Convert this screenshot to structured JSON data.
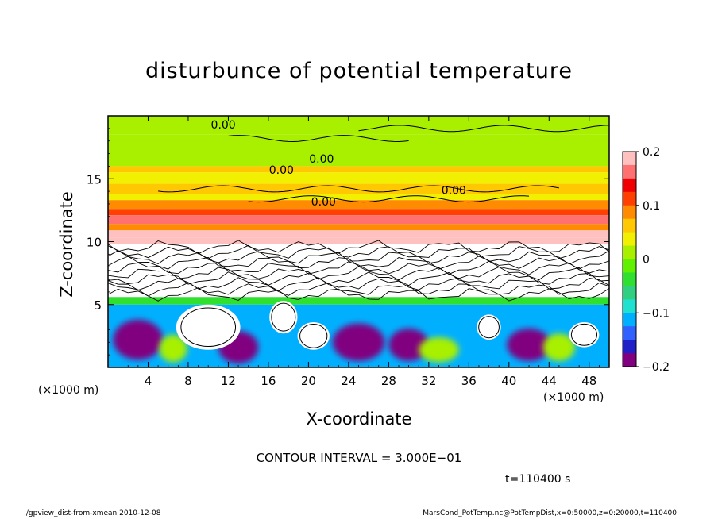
{
  "chart_data": {
    "type": "heatmap",
    "title": "disturbunce of potential temperature",
    "xlabel": "X-coordinate",
    "ylabel": "Z-coordinate",
    "x_unit": "(×1000 m)",
    "xlim": [
      0,
      50
    ],
    "ylim": [
      0,
      20
    ],
    "x_ticks": [
      4,
      8,
      12,
      16,
      20,
      24,
      28,
      32,
      36,
      40,
      44,
      48
    ],
    "y_ticks": [
      5,
      10,
      15
    ],
    "colorbar": {
      "range": [
        -0.2,
        0.2
      ],
      "tick_values": [
        0.2,
        0.1,
        0,
        -0.1,
        -0.2
      ],
      "tick_labels": [
        "0.2",
        "0.1",
        "0",
        "−0.1",
        "−0.2"
      ],
      "colors": [
        "#800080",
        "#2020c8",
        "#3060ff",
        "#00b0ff",
        "#20e0d0",
        "#30d080",
        "#30e030",
        "#60f000",
        "#a8f000",
        "#f0f000",
        "#ffc800",
        "#ff8c00",
        "#ff4000",
        "#f00000",
        "#ff7070",
        "#ffc0c0"
      ]
    },
    "contour_labels": [
      {
        "text": "0.00",
        "x": 11.5,
        "z": 19.3
      },
      {
        "text": "0.00",
        "x": 21.3,
        "z": 16.6
      },
      {
        "text": "0.00",
        "x": 17.3,
        "z": 15.7
      },
      {
        "text": "0.00",
        "x": 21.5,
        "z": 13.2
      },
      {
        "text": "0.00",
        "x": 34.5,
        "z": 14.1
      }
    ],
    "bands": [
      {
        "z0": 18.5,
        "z1": 20,
        "v": 0
      },
      {
        "z0": 16,
        "z1": 18.5,
        "v": 0.01
      },
      {
        "z0": 15.5,
        "z1": 16,
        "v": 0.05
      },
      {
        "z0": 14.6,
        "z1": 15.5,
        "v": 0.03
      },
      {
        "z0": 13.8,
        "z1": 14.6,
        "v": 0.06
      },
      {
        "z0": 13.3,
        "z1": 13.8,
        "v": 0.03
      },
      {
        "z0": 12.6,
        "z1": 13.3,
        "v": 0.08
      },
      {
        "z0": 12.1,
        "z1": 12.6,
        "v": 0.12
      },
      {
        "z0": 11.4,
        "z1": 12.1,
        "v": 0.16
      },
      {
        "z0": 10.9,
        "z1": 11.4,
        "v": 0.09
      },
      {
        "z0": 10.3,
        "z1": 10.9,
        "v": 0.18
      },
      {
        "z0": 9.8,
        "z1": 10.3,
        "v": 0.2
      },
      {
        "z0": 5.6,
        "z1": 9.8,
        "v": 0.3
      },
      {
        "z0": 5.0,
        "z1": 5.6,
        "v": -0.03
      },
      {
        "z0": 0,
        "z1": 5.0,
        "v": -0.12
      }
    ],
    "white_blobs": [
      {
        "x": 10,
        "z": 3.2,
        "rx": 3.2,
        "rz": 1.8
      },
      {
        "x": 17.5,
        "z": 4.0,
        "rx": 1.4,
        "rz": 1.3
      },
      {
        "x": 20.5,
        "z": 2.5,
        "rx": 1.6,
        "rz": 1.1
      },
      {
        "x": 38,
        "z": 3.2,
        "rx": 1.2,
        "rz": 1.0
      },
      {
        "x": 47.5,
        "z": 2.6,
        "rx": 1.5,
        "rz": 1.0
      }
    ],
    "blue_blobs": [
      {
        "x": 3,
        "z": 2.2,
        "rx": 2.5,
        "rz": 1.6
      },
      {
        "x": 13,
        "z": 1.6,
        "rx": 2.0,
        "rz": 1.3
      },
      {
        "x": 25,
        "z": 2.0,
        "rx": 2.6,
        "rz": 1.5
      },
      {
        "x": 30,
        "z": 1.8,
        "rx": 2.0,
        "rz": 1.3
      },
      {
        "x": 42,
        "z": 1.8,
        "rx": 2.2,
        "rz": 1.3
      }
    ],
    "green_blobs": [
      {
        "x": 6.5,
        "z": 1.5,
        "rx": 1.4,
        "rz": 1.1
      },
      {
        "x": 33,
        "z": 1.4,
        "rx": 2.0,
        "rz": 1.0
      },
      {
        "x": 45,
        "z": 1.6,
        "rx": 1.6,
        "rz": 1.1
      }
    ]
  },
  "contour_interval_text": "CONTOUR INTERVAL = 3.000E−01",
  "time_text": "t=110400 s",
  "footer_left": "./gpview_dist-from-xmean   2010-12-08",
  "footer_right": "MarsCond_PotTemp.nc@PotTempDist,x=0:50000,z=0:20000,t=110400"
}
